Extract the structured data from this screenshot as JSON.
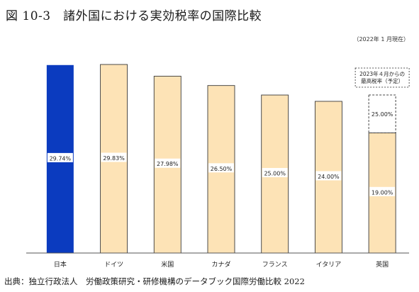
{
  "title": "図 10-3　諸外国における実効税率の国際比較",
  "as_of": "（2022年 1 月現在）",
  "source": "出典：独立行政法人　労働政策研究・研修機構のデータブック国際労働比較 2022",
  "colors": {
    "highlight": "#0b3bbf",
    "bar": "#fde3b6",
    "bar_border": "#3a3a3a",
    "axis": "#555555"
  },
  "chart_data": {
    "type": "bar",
    "categories": [
      "日本",
      "ドイツ",
      "米国",
      "カナダ",
      "フランス",
      "イタリア",
      "英国"
    ],
    "values": [
      29.74,
      29.83,
      27.98,
      26.5,
      25.0,
      24.0,
      19.0
    ],
    "value_labels": [
      "29.74%",
      "29.83%",
      "27.98%",
      "26.50%",
      "25.00%",
      "24.00%",
      "19.00%"
    ],
    "highlight_index": 0,
    "planned": {
      "category": "英国",
      "value": 25.0,
      "value_label": "25.00%",
      "note_lines": [
        "2023年４月からの",
        "最高税率（予定）"
      ]
    },
    "ylim": [
      0,
      30.5
    ],
    "xlabel": "",
    "ylabel": "",
    "grid": false
  }
}
